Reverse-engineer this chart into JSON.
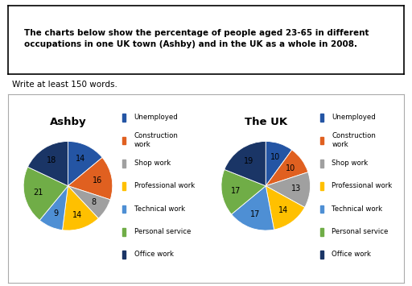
{
  "title_box_text": "The charts below show the percentage of people aged 23-65 in different\noccupations in one UK town (Ashby) and in the UK as a whole in 2008.",
  "subtitle": "Write at least 150 words.",
  "chart1_title": "Ashby",
  "chart2_title": "The UK",
  "categories": [
    "Unemployed",
    "Construction\nwork",
    "Shop work",
    "Professional work",
    "Technical work",
    "Personal service",
    "Office work"
  ],
  "ashby_values": [
    14,
    16,
    8,
    14,
    9,
    21,
    18
  ],
  "uk_values": [
    10,
    10,
    13,
    14,
    17,
    17,
    19
  ],
  "slice_colors": [
    "#2455a4",
    "#e06020",
    "#a0a0a0",
    "#ffc000",
    "#4e8fd4",
    "#70ad47",
    "#1a3566"
  ],
  "background": "#ffffff"
}
